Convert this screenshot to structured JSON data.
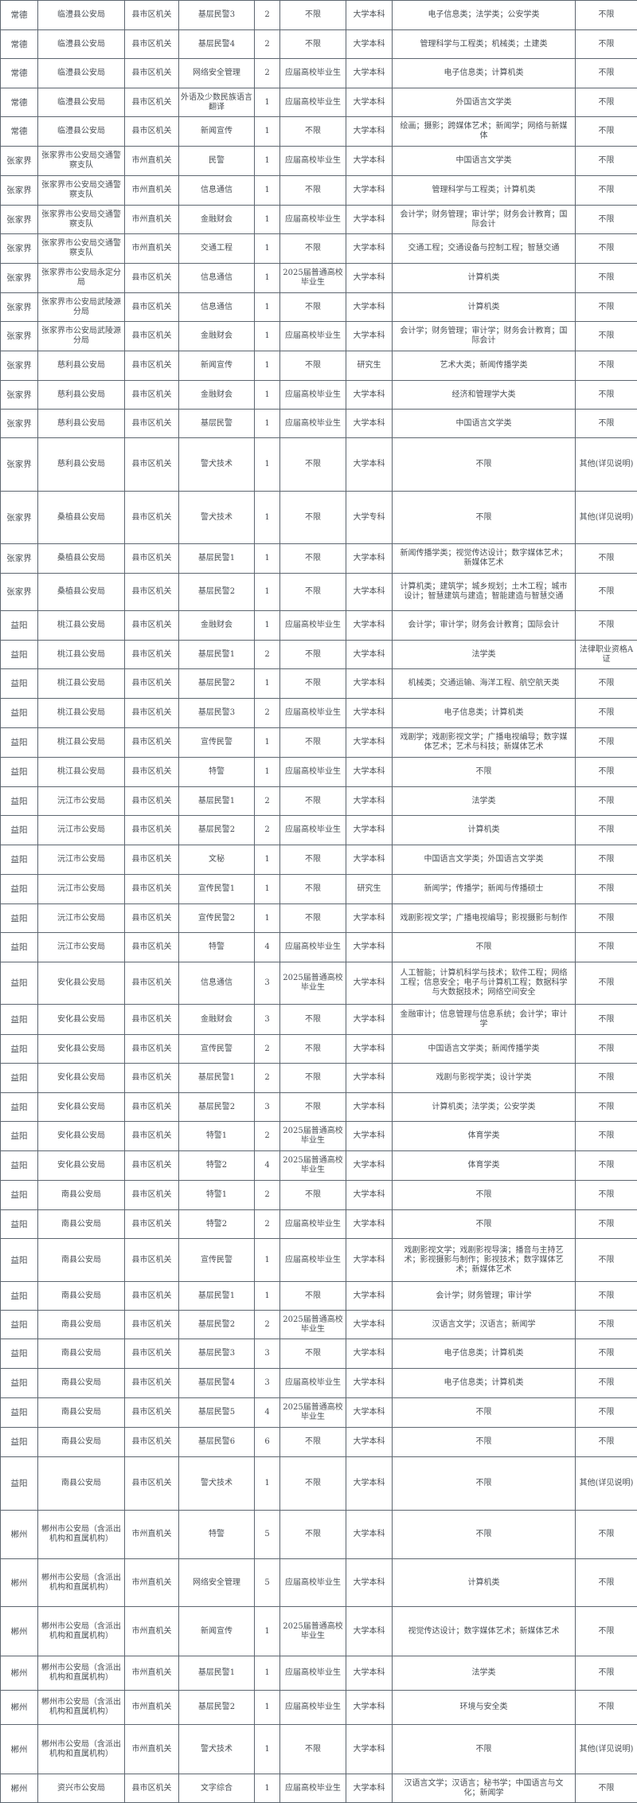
{
  "rows": [
    [
      "常德",
      "临澧县公安局",
      "县市区机关",
      "基层民警3",
      "2",
      "不限",
      "大学本科",
      "电子信息类；法学类；公安学类",
      "不限"
    ],
    [
      "常德",
      "临澧县公安局",
      "县市区机关",
      "基层民警4",
      "2",
      "不限",
      "大学本科",
      "管理科学与工程类；机械类；土建类",
      "不限"
    ],
    [
      "常德",
      "临澧县公安局",
      "县市区机关",
      "网络安全管理",
      "2",
      "应届高校毕业生",
      "大学本科",
      "电子信息类；计算机类",
      "不限"
    ],
    [
      "常德",
      "临澧县公安局",
      "县市区机关",
      "外语及少数民族语言翻译",
      "1",
      "应届高校毕业生",
      "大学本科",
      "外国语言文学类",
      "不限"
    ],
    [
      "常德",
      "临澧县公安局",
      "县市区机关",
      "新闻宣传",
      "1",
      "不限",
      "大学本科",
      "绘画；摄影；跨媒体艺术；新闻学；网络与新媒体",
      "不限"
    ],
    [
      "张家界",
      "张家界市公安局交通警察支队",
      "市州直机关",
      "民警",
      "1",
      "应届高校毕业生",
      "大学本科",
      "中国语言文学类",
      "不限"
    ],
    [
      "张家界",
      "张家界市公安局交通警察支队",
      "市州直机关",
      "信息通信",
      "1",
      "不限",
      "大学本科",
      "管理科学与工程类；计算机类",
      "不限"
    ],
    [
      "张家界",
      "张家界市公安局交通警察支队",
      "市州直机关",
      "金融财会",
      "1",
      "应届高校毕业生",
      "大学本科",
      "会计学；财务管理；审计学；财务会计教育；国际会计",
      "不限"
    ],
    [
      "张家界",
      "张家界市公安局交通警察支队",
      "市州直机关",
      "交通工程",
      "1",
      "不限",
      "大学本科",
      "交通工程；交通设备与控制工程；智慧交通",
      "不限"
    ],
    [
      "张家界",
      "张家界市公安局永定分局",
      "县市区机关",
      "信息通信",
      "1",
      "2025届普通高校毕业生",
      "大学本科",
      "计算机类",
      "不限"
    ],
    [
      "张家界",
      "张家界市公安局武陵源分局",
      "县市区机关",
      "信息通信",
      "1",
      "不限",
      "大学本科",
      "计算机类",
      "不限"
    ],
    [
      "张家界",
      "张家界市公安局武陵源分局",
      "县市区机关",
      "金融财会",
      "1",
      "应届高校毕业生",
      "大学本科",
      "会计学；财务管理；审计学；财务会计教育；国际会计",
      "不限"
    ],
    [
      "张家界",
      "慈利县公安局",
      "县市区机关",
      "新闻宣传",
      "1",
      "不限",
      "研究生",
      "艺术大类；新闻传播学类",
      "不限"
    ],
    [
      "张家界",
      "慈利县公安局",
      "县市区机关",
      "金融财会",
      "1",
      "应届高校毕业生",
      "大学本科",
      "经济和管理学大类",
      "不限"
    ],
    [
      "张家界",
      "慈利县公安局",
      "县市区机关",
      "基层民警",
      "1",
      "应届高校毕业生",
      "大学本科",
      "中国语言文学类",
      "不限"
    ],
    [
      "张家界",
      "慈利县公安局",
      "县市区机关",
      "警犬技术",
      "1",
      "不限",
      "大学本科",
      "不限",
      "其他(详见说明)"
    ],
    [
      "张家界",
      "桑植县公安局",
      "县市区机关",
      "警犬技术",
      "1",
      "不限",
      "大学专科",
      "不限",
      "其他(详见说明)"
    ],
    [
      "张家界",
      "桑植县公安局",
      "县市区机关",
      "基层民警1",
      "1",
      "不限",
      "大学本科",
      "新闻传播学类；视觉传达设计；数字媒体艺术；新媒体艺术",
      "不限"
    ],
    [
      "张家界",
      "桑植县公安局",
      "县市区机关",
      "基层民警2",
      "1",
      "不限",
      "大学本科",
      "计算机类；建筑学；城乡规划；土木工程；城市设计；智慧建筑与建造；智能建造与智慧交通",
      "不限"
    ],
    [
      "益阳",
      "桃江县公安局",
      "县市区机关",
      "金融财会",
      "1",
      "应届高校毕业生",
      "大学本科",
      "会计学；审计学；财务会计教育；国际会计",
      "不限"
    ],
    [
      "益阳",
      "桃江县公安局",
      "县市区机关",
      "基层民警1",
      "2",
      "不限",
      "大学本科",
      "法学类",
      "法律职业资格A证"
    ],
    [
      "益阳",
      "桃江县公安局",
      "县市区机关",
      "基层民警2",
      "1",
      "不限",
      "大学本科",
      "机械类；交通运输、海洋工程、航空航天类",
      "不限"
    ],
    [
      "益阳",
      "桃江县公安局",
      "县市区机关",
      "基层民警3",
      "2",
      "应届高校毕业生",
      "大学本科",
      "电子信息类；计算机类",
      "不限"
    ],
    [
      "益阳",
      "桃江县公安局",
      "县市区机关",
      "宣传民警",
      "1",
      "不限",
      "大学本科",
      "戏剧学；戏剧影视文学；广播电视编导；数字媒体艺术；艺术与科技；新媒体艺术",
      "不限"
    ],
    [
      "益阳",
      "桃江县公安局",
      "县市区机关",
      "特警",
      "1",
      "应届高校毕业生",
      "大学本科",
      "不限",
      "不限"
    ],
    [
      "益阳",
      "沅江市公安局",
      "县市区机关",
      "基层民警1",
      "2",
      "不限",
      "大学本科",
      "法学类",
      "不限"
    ],
    [
      "益阳",
      "沅江市公安局",
      "县市区机关",
      "基层民警2",
      "2",
      "应届高校毕业生",
      "大学本科",
      "计算机类",
      "不限"
    ],
    [
      "益阳",
      "沅江市公安局",
      "县市区机关",
      "文秘",
      "1",
      "不限",
      "大学本科",
      "中国语言文学类；外国语言文学类",
      "不限"
    ],
    [
      "益阳",
      "沅江市公安局",
      "县市区机关",
      "宣传民警1",
      "1",
      "不限",
      "研究生",
      "新闻学；传播学；新闻与传播硕士",
      "不限"
    ],
    [
      "益阳",
      "沅江市公安局",
      "县市区机关",
      "宣传民警2",
      "1",
      "不限",
      "大学本科",
      "戏剧影视文学；广播电视编导；影视摄影与制作",
      "不限"
    ],
    [
      "益阳",
      "沅江市公安局",
      "县市区机关",
      "特警",
      "4",
      "应届高校毕业生",
      "大学本科",
      "不限",
      "不限"
    ],
    [
      "益阳",
      "安化县公安局",
      "县市区机关",
      "信息通信",
      "3",
      "2025届普通高校毕业生",
      "大学本科",
      "人工智能；计算机科学与技术；软件工程；网络工程；信息安全；电子与计算机工程；数据科学与大数据技术；网络空间安全",
      "不限"
    ],
    [
      "益阳",
      "安化县公安局",
      "县市区机关",
      "金融财会",
      "3",
      "不限",
      "大学本科",
      "金融审计；信息管理与信息系统；会计学；审计学",
      "不限"
    ],
    [
      "益阳",
      "安化县公安局",
      "县市区机关",
      "宣传民警",
      "2",
      "不限",
      "大学本科",
      "中国语言文学类；新闻传播学类",
      "不限"
    ],
    [
      "益阳",
      "安化县公安局",
      "县市区机关",
      "基层民警1",
      "2",
      "不限",
      "大学本科",
      "戏剧与影视学类；设计学类",
      "不限"
    ],
    [
      "益阳",
      "安化县公安局",
      "县市区机关",
      "基层民警2",
      "3",
      "不限",
      "大学本科",
      "计算机类；法学类；公安学类",
      "不限"
    ],
    [
      "益阳",
      "安化县公安局",
      "县市区机关",
      "特警1",
      "2",
      "2025届普通高校毕业生",
      "大学本科",
      "体育学类",
      "不限"
    ],
    [
      "益阳",
      "安化县公安局",
      "县市区机关",
      "特警2",
      "4",
      "2025届普通高校毕业生",
      "大学本科",
      "体育学类",
      "不限"
    ],
    [
      "益阳",
      "南县公安局",
      "县市区机关",
      "特警1",
      "2",
      "不限",
      "大学本科",
      "不限",
      "不限"
    ],
    [
      "益阳",
      "南县公安局",
      "县市区机关",
      "特警2",
      "2",
      "应届高校毕业生",
      "大学本科",
      "不限",
      "不限"
    ],
    [
      "益阳",
      "南县公安局",
      "县市区机关",
      "宣传民警",
      "1",
      "应届高校毕业生",
      "大学本科",
      "戏剧影视文学；戏剧影视导演；播音与主持艺术；影视摄影与制作；影视技术；数字媒体艺术；新媒体艺术",
      "不限"
    ],
    [
      "益阳",
      "南县公安局",
      "县市区机关",
      "基层民警1",
      "1",
      "不限",
      "大学本科",
      "会计学；财务管理；审计学",
      "不限"
    ],
    [
      "益阳",
      "南县公安局",
      "县市区机关",
      "基层民警2",
      "2",
      "2025届普通高校毕业生",
      "大学本科",
      "汉语言文学；汉语言；新闻学",
      "不限"
    ],
    [
      "益阳",
      "南县公安局",
      "县市区机关",
      "基层民警3",
      "3",
      "不限",
      "大学本科",
      "电子信息类；计算机类",
      "不限"
    ],
    [
      "益阳",
      "南县公安局",
      "县市区机关",
      "基层民警4",
      "3",
      "应届高校毕业生",
      "大学本科",
      "电子信息类；计算机类",
      "不限"
    ],
    [
      "益阳",
      "南县公安局",
      "县市区机关",
      "基层民警5",
      "4",
      "2025届普通高校毕业生",
      "大学本科",
      "不限",
      "不限"
    ],
    [
      "益阳",
      "南县公安局",
      "县市区机关",
      "基层民警6",
      "6",
      "不限",
      "大学本科",
      "不限",
      "不限"
    ],
    [
      "益阳",
      "南县公安局",
      "县市区机关",
      "警犬技术",
      "1",
      "不限",
      "大学本科",
      "不限",
      "其他(详见说明)"
    ],
    [
      "郴州",
      "郴州市公安局（含派出机构和直属机构）",
      "市州直机关",
      "特警",
      "5",
      "不限",
      "大学本科",
      "不限",
      "不限"
    ],
    [
      "郴州",
      "郴州市公安局（含派出机构和直属机构）",
      "市州直机关",
      "网络安全管理",
      "5",
      "应届高校毕业生",
      "大学本科",
      "计算机类",
      "不限"
    ],
    [
      "郴州",
      "郴州市公安局（含派出机构和直属机构）",
      "市州直机关",
      "新闻宣传",
      "1",
      "2025届普通高校毕业生",
      "大学本科",
      "视觉传达设计；数字媒体艺术；新媒体艺术",
      "不限"
    ],
    [
      "郴州",
      "郴州市公安局（含派出机构和直属机构）",
      "市州直机关",
      "基层民警1",
      "1",
      "应届高校毕业生",
      "大学本科",
      "法学类",
      "不限"
    ],
    [
      "郴州",
      "郴州市公安局（含派出机构和直属机构）",
      "市州直机关",
      "基层民警2",
      "1",
      "应届高校毕业生",
      "大学本科",
      "环境与安全类",
      "不限"
    ],
    [
      "郴州",
      "郴州市公安局（含派出机构和直属机构）",
      "市州直机关",
      "警犬技术",
      "1",
      "不限",
      "大学本科",
      "不限",
      "其他(详见说明)"
    ],
    [
      "郴州",
      "资兴市公安局",
      "县市区机关",
      "文字综合",
      "1",
      "应届高校毕业生",
      "大学本科",
      "汉语言文学；汉语言；秘书学；中国语言与文化；新闻学",
      "不限"
    ]
  ]
}
